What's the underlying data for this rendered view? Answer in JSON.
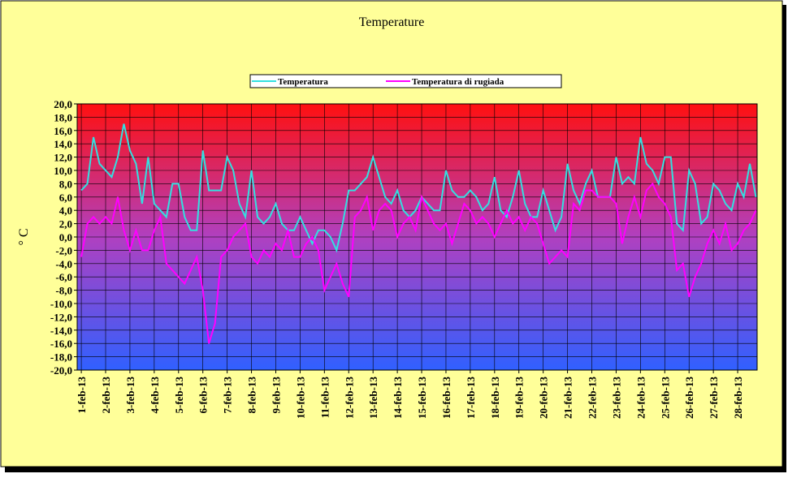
{
  "chart_data": {
    "type": "line",
    "title": "Temperature",
    "y_label": "° C",
    "legend": "top",
    "grid": true,
    "xlim": [
      0.83,
      28.8
    ],
    "xticks": [
      {
        "value": 1,
        "label": "1-feb-13"
      },
      {
        "value": 2,
        "label": "2-feb-13"
      },
      {
        "value": 3,
        "label": "3-feb-13"
      },
      {
        "value": 4,
        "label": "4-feb-13"
      },
      {
        "value": 5,
        "label": "5-feb-13"
      },
      {
        "value": 6,
        "label": "6-feb-13"
      },
      {
        "value": 7,
        "label": "7-feb-13"
      },
      {
        "value": 8,
        "label": "8-feb-13"
      },
      {
        "value": 9,
        "label": "9-feb-13"
      },
      {
        "value": 10,
        "label": "10-feb-13"
      },
      {
        "value": 11,
        "label": "11-feb-13"
      },
      {
        "value": 12,
        "label": "12-feb-13"
      },
      {
        "value": 13,
        "label": "13-feb-13"
      },
      {
        "value": 14,
        "label": "14-feb-13"
      },
      {
        "value": 15,
        "label": "15-feb-13"
      },
      {
        "value": 16,
        "label": "16-feb-13"
      },
      {
        "value": 17,
        "label": "17-feb-13"
      },
      {
        "value": 18,
        "label": "18-feb-13"
      },
      {
        "value": 19,
        "label": "19-feb-13"
      },
      {
        "value": 20,
        "label": "20-feb-13"
      },
      {
        "value": 21,
        "label": "21-feb-13"
      },
      {
        "value": 22,
        "label": "22-feb-13"
      },
      {
        "value": 23,
        "label": "23-feb-13"
      },
      {
        "value": 24,
        "label": "24-feb-13"
      },
      {
        "value": 25,
        "label": "25-feb-13"
      },
      {
        "value": 26,
        "label": "26-feb-13"
      },
      {
        "value": 27,
        "label": "27-feb-13"
      },
      {
        "value": 28,
        "label": "28-feb-13"
      }
    ],
    "ylim": [
      -20,
      20
    ],
    "yticks": [
      {
        "value": 20,
        "label": "20,0"
      },
      {
        "value": 18,
        "label": "18,0"
      },
      {
        "value": 16,
        "label": "16,0"
      },
      {
        "value": 14,
        "label": "14,0"
      },
      {
        "value": 12,
        "label": "12,0"
      },
      {
        "value": 10,
        "label": "10,0"
      },
      {
        "value": 8,
        "label": "8,0"
      },
      {
        "value": 6,
        "label": "6,0"
      },
      {
        "value": 4,
        "label": "4,0"
      },
      {
        "value": 2,
        "label": "2,0"
      },
      {
        "value": 0,
        "label": "0,0"
      },
      {
        "value": -2,
        "label": "-2,0"
      },
      {
        "value": -4,
        "label": "-4,0"
      },
      {
        "value": -6,
        "label": "-6,0"
      },
      {
        "value": -8,
        "label": "-8,0"
      },
      {
        "value": -10,
        "label": "-10,0"
      },
      {
        "value": -12,
        "label": "-12,0"
      },
      {
        "value": -14,
        "label": "-14,0"
      },
      {
        "value": -16,
        "label": "-16,0"
      },
      {
        "value": -18,
        "label": "-18,0"
      },
      {
        "value": -20,
        "label": "-20,0"
      }
    ],
    "x": [
      1,
      1.25,
      1.5,
      1.75,
      2,
      2.25,
      2.5,
      2.75,
      3,
      3.25,
      3.5,
      3.75,
      4,
      4.25,
      4.5,
      4.75,
      5,
      5.25,
      5.5,
      5.75,
      6,
      6.25,
      6.5,
      6.75,
      7,
      7.25,
      7.5,
      7.75,
      8,
      8.25,
      8.5,
      8.75,
      9,
      9.25,
      9.5,
      9.75,
      10,
      10.25,
      10.5,
      10.75,
      11,
      11.25,
      11.5,
      11.75,
      12,
      12.25,
      12.5,
      12.75,
      13,
      13.25,
      13.5,
      13.75,
      14,
      14.25,
      14.5,
      14.75,
      15,
      15.25,
      15.5,
      15.75,
      16,
      16.25,
      16.5,
      16.75,
      17,
      17.25,
      17.5,
      17.75,
      18,
      18.25,
      18.5,
      18.75,
      19,
      19.25,
      19.5,
      19.75,
      20,
      20.25,
      20.5,
      20.75,
      21,
      21.25,
      21.5,
      21.75,
      22,
      22.25,
      22.5,
      22.75,
      23,
      23.25,
      23.5,
      23.75,
      24,
      24.25,
      24.5,
      24.75,
      25,
      25.25,
      25.5,
      25.75,
      26,
      26.25,
      26.5,
      26.75,
      27,
      27.25,
      27.5,
      27.75,
      28,
      28.25,
      28.5,
      28.75
    ],
    "series": [
      {
        "name": "Temperatura",
        "color": "#33e0e0",
        "values": [
          7,
          8,
          15,
          11,
          10,
          9,
          12,
          17,
          13,
          11,
          5,
          12,
          5,
          4,
          3,
          8,
          8,
          3,
          1,
          1,
          13,
          7,
          7,
          7,
          12,
          10,
          5,
          3,
          10,
          3,
          2,
          3,
          5,
          2,
          1,
          1,
          3,
          1,
          -1,
          1,
          1,
          0,
          -2,
          2,
          7,
          7,
          8,
          9,
          12,
          9,
          6,
          5,
          7,
          4,
          3,
          4,
          6,
          5,
          4,
          4,
          10,
          7,
          6,
          6,
          7,
          6,
          4,
          5,
          9,
          4,
          3,
          6,
          10,
          5,
          3,
          3,
          7,
          4,
          1,
          3,
          11,
          7,
          5,
          8,
          10,
          6,
          6,
          6,
          12,
          8,
          9,
          8,
          15,
          11,
          10,
          8,
          12,
          12,
          2,
          1,
          10,
          8,
          2,
          3,
          8,
          7,
          5,
          4,
          8,
          6,
          11,
          6
        ]
      },
      {
        "name": "Temperatura di rugiada",
        "color": "#ff00ff",
        "values": [
          -3,
          2,
          3,
          2,
          3,
          2,
          6,
          1,
          -2,
          1,
          -2,
          -2,
          1,
          3,
          -4,
          -5,
          -6,
          -7,
          -5,
          -3,
          -8,
          -16,
          -13,
          -3,
          -2,
          0,
          1,
          2,
          -3,
          -4,
          -2,
          -3,
          -1,
          -2,
          1,
          -3,
          -3,
          -1,
          0,
          -2,
          -8,
          -6,
          -4,
          -7,
          -9,
          3,
          4,
          6,
          1,
          4,
          5,
          4,
          0,
          2,
          3,
          1,
          6,
          4,
          2,
          1,
          2,
          -1,
          2,
          5,
          4,
          2,
          3,
          2,
          0,
          2,
          4,
          2,
          3,
          1,
          3,
          2,
          -1,
          -4,
          -3,
          -2,
          -3,
          5,
          4,
          7,
          7,
          6,
          6,
          6,
          5,
          -1,
          3,
          6,
          3,
          7,
          8,
          6,
          5,
          3,
          -5,
          -4,
          -9,
          -6,
          -4,
          -1,
          1,
          -1,
          2,
          -2,
          -1,
          1,
          2,
          4
        ]
      }
    ]
  }
}
